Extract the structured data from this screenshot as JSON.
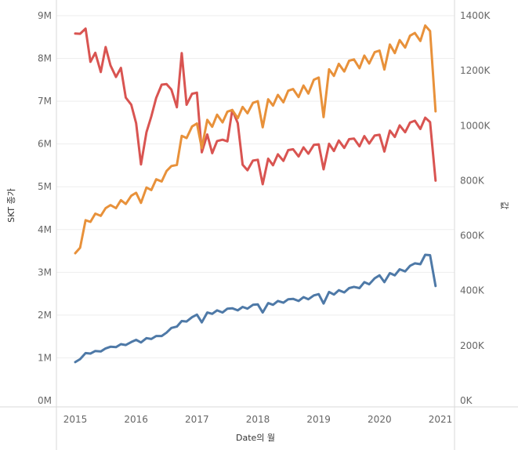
{
  "chart_data": {
    "type": "line",
    "xlabel": "Date의 월",
    "ylabel_left": "SKT 종가",
    "ylabel_right": "값",
    "xlim": [
      2015,
      2021
    ],
    "x_ticks": [
      "2015",
      "2016",
      "2017",
      "2018",
      "2019",
      "2020",
      "2021"
    ],
    "ylim_left": [
      0,
      9000000
    ],
    "ylim_right": [
      0,
      1400000
    ],
    "y_ticks_left": [
      "0M",
      "1M",
      "2M",
      "3M",
      "4M",
      "5M",
      "6M",
      "7M",
      "8M",
      "9M"
    ],
    "y_ticks_right": [
      "0K",
      "200K",
      "400K",
      "600K",
      "800K",
      "1000K",
      "1200K",
      "1400K"
    ],
    "grid": true,
    "colors": {
      "red": "#d95451",
      "orange": "#e8913a",
      "blue": "#4e79a7"
    },
    "series": [
      {
        "axis": "right",
        "color": "#d95451",
        "points": [
          [
            2015.0,
            1335
          ],
          [
            2015.08,
            1334
          ],
          [
            2015.17,
            1353
          ],
          [
            2015.25,
            1232
          ],
          [
            2015.33,
            1265
          ],
          [
            2015.42,
            1195
          ],
          [
            2015.5,
            1286
          ],
          [
            2015.58,
            1219
          ],
          [
            2015.67,
            1177
          ],
          [
            2015.75,
            1210
          ],
          [
            2015.83,
            1102
          ],
          [
            2015.92,
            1076
          ],
          [
            2016.0,
            1009
          ],
          [
            2016.08,
            859
          ],
          [
            2016.17,
            976
          ],
          [
            2016.25,
            1034
          ],
          [
            2016.33,
            1101
          ],
          [
            2016.42,
            1149
          ],
          [
            2016.5,
            1151
          ],
          [
            2016.58,
            1131
          ],
          [
            2016.67,
            1067
          ],
          [
            2016.75,
            1264
          ],
          [
            2016.83,
            1076
          ],
          [
            2016.92,
            1116
          ],
          [
            2017.0,
            1120
          ],
          [
            2017.08,
            903
          ],
          [
            2017.17,
            968
          ],
          [
            2017.25,
            900
          ],
          [
            2017.33,
            944
          ],
          [
            2017.42,
            949
          ],
          [
            2017.5,
            943
          ],
          [
            2017.58,
            1057
          ],
          [
            2017.67,
            1009
          ],
          [
            2017.75,
            858
          ],
          [
            2017.83,
            838
          ],
          [
            2017.92,
            873
          ],
          [
            2018.0,
            876
          ],
          [
            2018.08,
            787
          ],
          [
            2018.17,
            880
          ],
          [
            2018.25,
            856
          ],
          [
            2018.33,
            896
          ],
          [
            2018.42,
            872
          ],
          [
            2018.5,
            911
          ],
          [
            2018.58,
            914
          ],
          [
            2018.67,
            888
          ],
          [
            2018.75,
            921
          ],
          [
            2018.83,
            898
          ],
          [
            2018.92,
            930
          ],
          [
            2019.0,
            932
          ],
          [
            2019.08,
            841
          ],
          [
            2019.17,
            934
          ],
          [
            2019.25,
            908
          ],
          [
            2019.33,
            946
          ],
          [
            2019.42,
            919
          ],
          [
            2019.5,
            951
          ],
          [
            2019.58,
            953
          ],
          [
            2019.67,
            925
          ],
          [
            2019.75,
            962
          ],
          [
            2019.83,
            935
          ],
          [
            2019.92,
            964
          ],
          [
            2020.0,
            967
          ],
          [
            2020.08,
            906
          ],
          [
            2020.17,
            982
          ],
          [
            2020.25,
            959
          ],
          [
            2020.33,
            1001
          ],
          [
            2020.42,
            976
          ],
          [
            2020.5,
            1011
          ],
          [
            2020.58,
            1018
          ],
          [
            2020.67,
            988
          ],
          [
            2020.75,
            1029
          ],
          [
            2020.83,
            1013
          ],
          [
            2020.92,
            800
          ]
        ]
      },
      {
        "axis": "right",
        "color": "#e8913a",
        "points": [
          [
            2015.0,
            536
          ],
          [
            2015.08,
            556
          ],
          [
            2015.17,
            656
          ],
          [
            2015.25,
            650
          ],
          [
            2015.33,
            680
          ],
          [
            2015.42,
            672
          ],
          [
            2015.5,
            700
          ],
          [
            2015.58,
            711
          ],
          [
            2015.67,
            700
          ],
          [
            2015.75,
            729
          ],
          [
            2015.83,
            715
          ],
          [
            2015.92,
            745
          ],
          [
            2016.0,
            756
          ],
          [
            2016.08,
            719
          ],
          [
            2016.17,
            775
          ],
          [
            2016.25,
            766
          ],
          [
            2016.33,
            805
          ],
          [
            2016.42,
            797
          ],
          [
            2016.5,
            835
          ],
          [
            2016.58,
            853
          ],
          [
            2016.67,
            857
          ],
          [
            2016.75,
            963
          ],
          [
            2016.83,
            955
          ],
          [
            2016.92,
            997
          ],
          [
            2017.0,
            1008
          ],
          [
            2017.08,
            918
          ],
          [
            2017.17,
            1021
          ],
          [
            2017.25,
            996
          ],
          [
            2017.33,
            1040
          ],
          [
            2017.42,
            1012
          ],
          [
            2017.5,
            1051
          ],
          [
            2017.58,
            1057
          ],
          [
            2017.67,
            1027
          ],
          [
            2017.75,
            1068
          ],
          [
            2017.83,
            1045
          ],
          [
            2017.92,
            1083
          ],
          [
            2018.0,
            1089
          ],
          [
            2018.08,
            994
          ],
          [
            2018.17,
            1096
          ],
          [
            2018.25,
            1073
          ],
          [
            2018.33,
            1112
          ],
          [
            2018.42,
            1085
          ],
          [
            2018.5,
            1127
          ],
          [
            2018.58,
            1133
          ],
          [
            2018.67,
            1104
          ],
          [
            2018.75,
            1146
          ],
          [
            2018.83,
            1117
          ],
          [
            2018.92,
            1167
          ],
          [
            2019.0,
            1175
          ],
          [
            2019.08,
            1031
          ],
          [
            2019.17,
            1205
          ],
          [
            2019.25,
            1181
          ],
          [
            2019.33,
            1225
          ],
          [
            2019.42,
            1197
          ],
          [
            2019.5,
            1236
          ],
          [
            2019.58,
            1241
          ],
          [
            2019.67,
            1209
          ],
          [
            2019.75,
            1255
          ],
          [
            2019.83,
            1226
          ],
          [
            2019.92,
            1267
          ],
          [
            2020.0,
            1273
          ],
          [
            2020.08,
            1204
          ],
          [
            2020.17,
            1295
          ],
          [
            2020.25,
            1264
          ],
          [
            2020.33,
            1311
          ],
          [
            2020.42,
            1284
          ],
          [
            2020.5,
            1327
          ],
          [
            2020.58,
            1337
          ],
          [
            2020.67,
            1308
          ],
          [
            2020.75,
            1364
          ],
          [
            2020.83,
            1344
          ],
          [
            2020.92,
            1052
          ]
        ]
      },
      {
        "axis": "left",
        "color": "#4e79a7",
        "points": [
          [
            2015.0,
            0.9
          ],
          [
            2015.08,
            0.97
          ],
          [
            2015.17,
            1.11
          ],
          [
            2015.25,
            1.1
          ],
          [
            2015.33,
            1.16
          ],
          [
            2015.42,
            1.15
          ],
          [
            2015.5,
            1.22
          ],
          [
            2015.58,
            1.26
          ],
          [
            2015.67,
            1.25
          ],
          [
            2015.75,
            1.32
          ],
          [
            2015.83,
            1.3
          ],
          [
            2015.92,
            1.37
          ],
          [
            2016.0,
            1.42
          ],
          [
            2016.08,
            1.36
          ],
          [
            2016.17,
            1.46
          ],
          [
            2016.25,
            1.44
          ],
          [
            2016.33,
            1.51
          ],
          [
            2016.42,
            1.51
          ],
          [
            2016.5,
            1.59
          ],
          [
            2016.58,
            1.7
          ],
          [
            2016.67,
            1.73
          ],
          [
            2016.75,
            1.86
          ],
          [
            2016.83,
            1.85
          ],
          [
            2016.92,
            1.95
          ],
          [
            2017.0,
            2.01
          ],
          [
            2017.08,
            1.83
          ],
          [
            2017.17,
            2.06
          ],
          [
            2017.25,
            2.03
          ],
          [
            2017.33,
            2.11
          ],
          [
            2017.42,
            2.06
          ],
          [
            2017.5,
            2.15
          ],
          [
            2017.58,
            2.16
          ],
          [
            2017.67,
            2.11
          ],
          [
            2017.75,
            2.19
          ],
          [
            2017.83,
            2.15
          ],
          [
            2017.92,
            2.24
          ],
          [
            2018.0,
            2.25
          ],
          [
            2018.08,
            2.06
          ],
          [
            2018.17,
            2.28
          ],
          [
            2018.25,
            2.24
          ],
          [
            2018.33,
            2.33
          ],
          [
            2018.42,
            2.29
          ],
          [
            2018.5,
            2.37
          ],
          [
            2018.58,
            2.38
          ],
          [
            2018.67,
            2.33
          ],
          [
            2018.75,
            2.42
          ],
          [
            2018.83,
            2.37
          ],
          [
            2018.92,
            2.46
          ],
          [
            2019.0,
            2.49
          ],
          [
            2019.08,
            2.27
          ],
          [
            2019.17,
            2.54
          ],
          [
            2019.25,
            2.48
          ],
          [
            2019.33,
            2.58
          ],
          [
            2019.42,
            2.53
          ],
          [
            2019.5,
            2.63
          ],
          [
            2019.58,
            2.66
          ],
          [
            2019.67,
            2.63
          ],
          [
            2019.75,
            2.77
          ],
          [
            2019.83,
            2.72
          ],
          [
            2019.92,
            2.86
          ],
          [
            2020.0,
            2.93
          ],
          [
            2020.08,
            2.77
          ],
          [
            2020.17,
            2.98
          ],
          [
            2020.25,
            2.93
          ],
          [
            2020.33,
            3.07
          ],
          [
            2020.42,
            3.02
          ],
          [
            2020.5,
            3.15
          ],
          [
            2020.58,
            3.21
          ],
          [
            2020.67,
            3.19
          ],
          [
            2020.75,
            3.41
          ],
          [
            2020.83,
            3.4
          ],
          [
            2020.92,
            2.68
          ]
        ]
      }
    ]
  }
}
